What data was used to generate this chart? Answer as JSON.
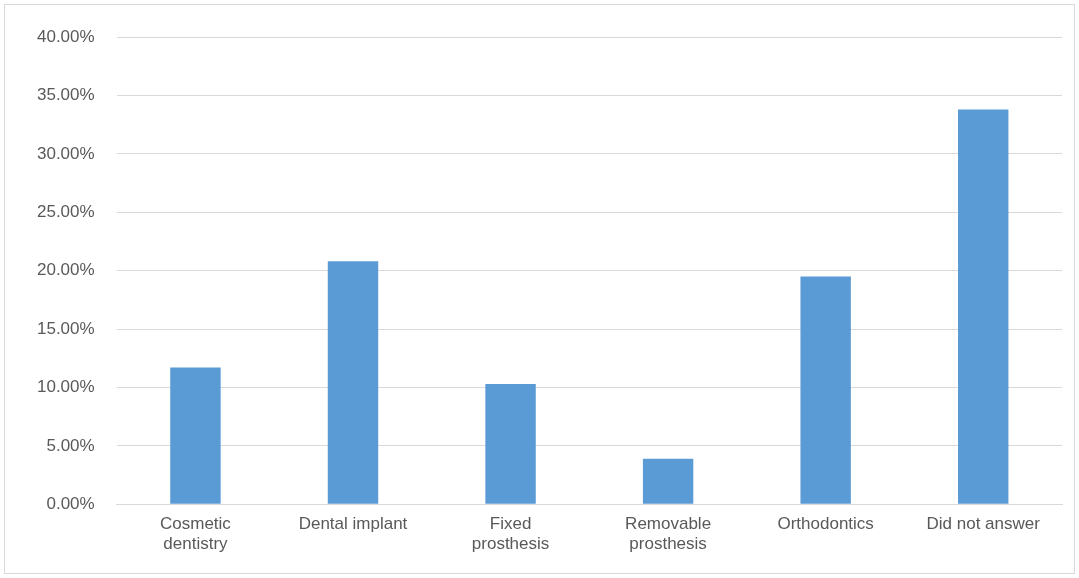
{
  "chart_data": {
    "type": "bar",
    "categories": [
      "Cosmetic dentistry",
      "Dental implant",
      "Fixed prosthesis",
      "Removable prosthesis",
      "Orthodontics",
      "Did not answer"
    ],
    "values": [
      11.7,
      20.8,
      10.3,
      3.9,
      19.5,
      33.8
    ],
    "color": "#5b9bd5",
    "ylim": [
      0,
      40
    ],
    "yticks": [
      {
        "value": 0,
        "label": "0.00%"
      },
      {
        "value": 5,
        "label": "5.00%"
      },
      {
        "value": 10,
        "label": "10.00%"
      },
      {
        "value": 15,
        "label": "15.00%"
      },
      {
        "value": 20,
        "label": "20.00%"
      },
      {
        "value": 25,
        "label": "25.00%"
      },
      {
        "value": 30,
        "label": "30.00%"
      },
      {
        "value": 35,
        "label": "35.00%"
      },
      {
        "value": 40,
        "label": "40.00%"
      }
    ],
    "grid": "y",
    "legend": false
  }
}
